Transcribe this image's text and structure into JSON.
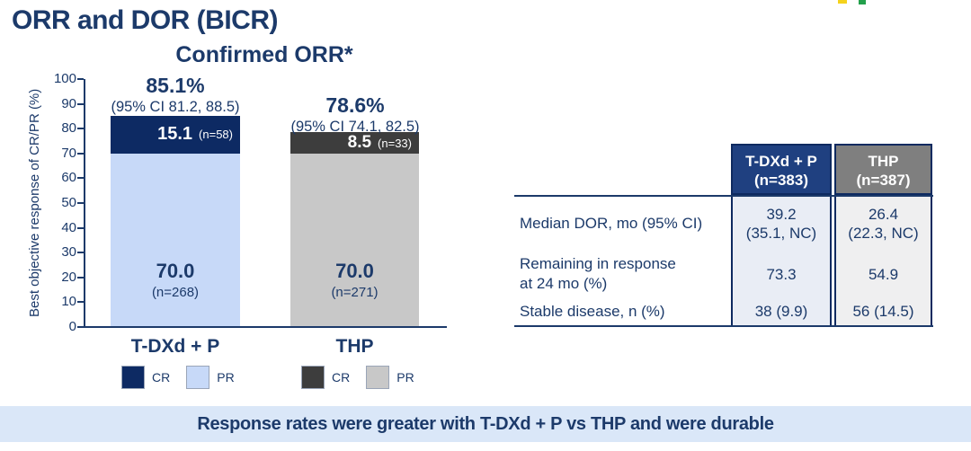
{
  "slide": {
    "title": "ORR and DOR (BICR)",
    "banner": "Response rates were greater with T-DXd + P vs THP and were durable"
  },
  "colors": {
    "navy_text": "#1c3a6a",
    "banner_bg": "#dae7f8",
    "logo_fragment_yellow": "#f5d21c",
    "logo_fragment_green": "#23a04c"
  },
  "chart_data": {
    "type": "bar",
    "stacked": true,
    "title": "Confirmed ORR*",
    "xlabel": "",
    "ylabel": "Best objective response of CR/PR (%)",
    "ylim": [
      0,
      100
    ],
    "grid": false,
    "yticks": [
      "100",
      "90",
      "80",
      "70",
      "60",
      "50",
      "40",
      "30",
      "20",
      "10",
      "0"
    ],
    "categories": [
      "T-DXd + P",
      "THP"
    ],
    "series": [
      {
        "name": "CR",
        "values": [
          15.1,
          8.5
        ]
      },
      {
        "name": "PR",
        "values": [
          70.0,
          70.0
        ]
      }
    ],
    "bars": [
      {
        "label": "T-DXd + P",
        "total_label": "85.1%",
        "ci_label": "(95% CI 81.2, 88.5)",
        "cr": {
          "value": 15.1,
          "value_label": "15.1",
          "n_label": "(n=58)",
          "color": "#0d2a63"
        },
        "pr": {
          "value": 70.0,
          "value_label": "70.0",
          "n_label": "(n=268)",
          "color": "#c7d9f8"
        },
        "legend": [
          {
            "label": "CR",
            "color": "#0d2a63"
          },
          {
            "label": "PR",
            "color": "#c7d9f8"
          }
        ]
      },
      {
        "label": "THP",
        "total_label": "78.6%",
        "ci_label": "(95% CI 74.1, 82.5)",
        "cr": {
          "value": 8.5,
          "value_label": "8.5",
          "n_label": "(n=33)",
          "color": "#3d3d3d"
        },
        "pr": {
          "value": 70.0,
          "value_label": "70.0",
          "n_label": "(n=271)",
          "color": "#c8c8c8"
        },
        "legend": [
          {
            "label": "CR",
            "color": "#3d3d3d"
          },
          {
            "label": "PR",
            "color": "#c8c8c8"
          }
        ]
      }
    ]
  },
  "dor_table": {
    "headers": [
      {
        "line1": "T-DXd + P",
        "line2": "(n=383)",
        "color": "#1f4080"
      },
      {
        "line1": "THP",
        "line2": "(n=387)",
        "color": "#7f7f7f"
      }
    ],
    "rows": [
      {
        "label1": "Median DOR, mo (95% CI)",
        "label2": "",
        "values": [
          {
            "line1": "39.2",
            "line2": "(35.1, NC)"
          },
          {
            "line1": "26.4",
            "line2": "(22.3, NC)"
          }
        ]
      },
      {
        "label1": "Remaining in response",
        "label2": "at 24 mo (%)",
        "values": [
          {
            "line1": "73.3",
            "line2": ""
          },
          {
            "line1": "54.9",
            "line2": ""
          }
        ]
      },
      {
        "label1": "Stable disease, n (%)",
        "label2": "",
        "values": [
          {
            "line1": "38 (9.9)",
            "line2": ""
          },
          {
            "line1": "56 (14.5)",
            "line2": ""
          }
        ]
      }
    ]
  }
}
